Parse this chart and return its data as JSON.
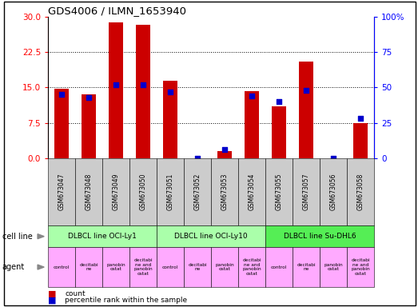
{
  "title": "GDS4006 / ILMN_1653940",
  "samples": [
    "GSM673047",
    "GSM673048",
    "GSM673049",
    "GSM673050",
    "GSM673051",
    "GSM673052",
    "GSM673053",
    "GSM673054",
    "GSM673055",
    "GSM673057",
    "GSM673056",
    "GSM673058"
  ],
  "counts": [
    14.8,
    13.5,
    28.8,
    28.4,
    16.5,
    0.0,
    1.5,
    14.2,
    11.0,
    20.5,
    0.0,
    7.5
  ],
  "percentiles": [
    45,
    43,
    52,
    52,
    47,
    0,
    6,
    44,
    40,
    48,
    0,
    28
  ],
  "left_ylim": [
    0,
    30
  ],
  "right_ylim": [
    0,
    100
  ],
  "left_yticks": [
    0,
    7.5,
    15,
    22.5,
    30
  ],
  "right_yticks": [
    0,
    25,
    50,
    75,
    100
  ],
  "right_yticklabels": [
    "0",
    "25",
    "50",
    "75",
    "100%"
  ],
  "bar_color": "#cc0000",
  "dot_color": "#0000cc",
  "cell_line_groups": [
    {
      "label": "DLBCL line OCI-Ly1",
      "start": 0,
      "end": 4,
      "color": "#aaffaa"
    },
    {
      "label": "DLBCL line OCI-Ly10",
      "start": 4,
      "end": 8,
      "color": "#aaffaa"
    },
    {
      "label": "DLBCL line Su-DHL6",
      "start": 8,
      "end": 12,
      "color": "#55ee55"
    }
  ],
  "agents": [
    "control",
    "decitabi\nne",
    "panobin\nostat",
    "decitabi\nne and\npanobin\nostat",
    "control",
    "decitabi\nne",
    "panobin\nostat",
    "decitabi\nne and\npanobin\nostat",
    "control",
    "decitabi\nne",
    "panobin\nostat",
    "decitabi\nne and\npanobin\nostat"
  ],
  "agent_color": "#ffaaff",
  "sample_bg_color": "#cccccc",
  "legend_count_color": "#cc0000",
  "legend_pct_color": "#0000cc"
}
